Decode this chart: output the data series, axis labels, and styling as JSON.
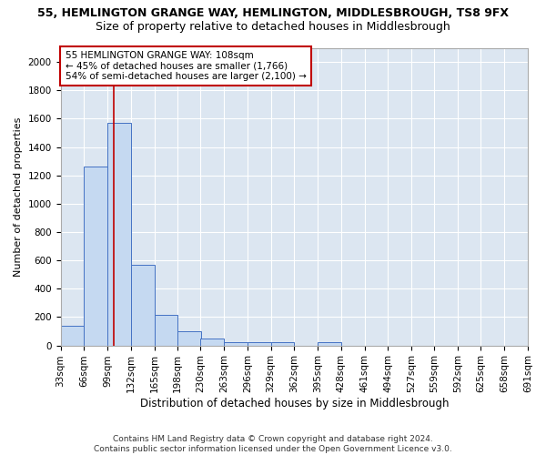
{
  "title1": "55, HEMLINGTON GRANGE WAY, HEMLINGTON, MIDDLESBROUGH, TS8 9FX",
  "title2": "Size of property relative to detached houses in Middlesbrough",
  "xlabel": "Distribution of detached houses by size in Middlesbrough",
  "ylabel": "Number of detached properties",
  "bin_edges": [
    33,
    66,
    99,
    132,
    165,
    198,
    230,
    263,
    296,
    329,
    362,
    395,
    428,
    461,
    494,
    527,
    559,
    592,
    625,
    658,
    691
  ],
  "bar_heights": [
    140,
    1260,
    1570,
    570,
    215,
    100,
    50,
    25,
    20,
    20,
    0,
    20,
    0,
    0,
    0,
    0,
    0,
    0,
    0,
    0
  ],
  "bar_color": "#c5d9f1",
  "bar_edge_color": "#4472c4",
  "bg_color": "#dce6f1",
  "grid_color": "#ffffff",
  "vline_x": 108,
  "vline_color": "#c00000",
  "annotation_line1": "55 HEMLINGTON GRANGE WAY: 108sqm",
  "annotation_line2": "← 45% of detached houses are smaller (1,766)",
  "annotation_line3": "54% of semi-detached houses are larger (2,100) →",
  "annotation_box_color": "#ffffff",
  "annotation_border_color": "#c00000",
  "ylim": [
    0,
    2100
  ],
  "yticks": [
    0,
    200,
    400,
    600,
    800,
    1000,
    1200,
    1400,
    1600,
    1800,
    2000
  ],
  "footnote": "Contains HM Land Registry data © Crown copyright and database right 2024.\nContains public sector information licensed under the Open Government Licence v3.0.",
  "title1_fontsize": 9,
  "title2_fontsize": 9,
  "xlabel_fontsize": 8.5,
  "ylabel_fontsize": 8,
  "tick_fontsize": 7.5,
  "annotation_fontsize": 7.5,
  "footnote_fontsize": 6.5
}
